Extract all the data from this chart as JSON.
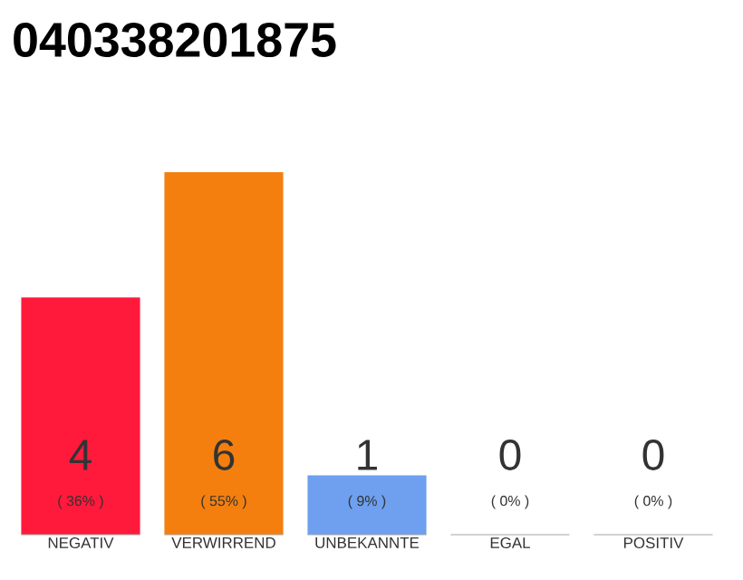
{
  "chart_data": {
    "type": "bar",
    "title": "040338201875",
    "categories": [
      "NEGATIV",
      "VERWIRREND",
      "UNBEKANNTE",
      "EGAL",
      "POSITIV"
    ],
    "values": [
      36,
      55,
      9,
      0,
      0
    ],
    "colors": [
      "#ff1a3c",
      "#f47f0e",
      "#6ea0ef",
      "#cccccc",
      "#cccccc"
    ],
    "value_labels": [
      "( 36% )",
      "( 55% )",
      "( 9% )",
      "( 0% )",
      "( 0% )"
    ],
    "annotations": [
      "4",
      "6",
      "1",
      "0",
      "0"
    ]
  }
}
